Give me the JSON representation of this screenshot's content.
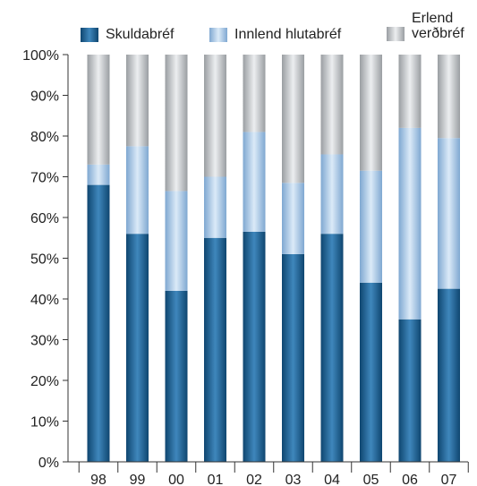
{
  "chart_data": {
    "type": "bar",
    "stacked": true,
    "categories": [
      "98",
      "99",
      "00",
      "01",
      "02",
      "03",
      "04",
      "05",
      "06",
      "07"
    ],
    "series": [
      {
        "name": "Skuldabréf",
        "color": "#1a5a8a",
        "values": [
          68,
          56,
          42,
          55,
          56.5,
          51,
          56,
          44,
          35,
          42.5
        ]
      },
      {
        "name": "Innlend hlutabréf",
        "color": "#9dc2e6",
        "values": [
          5,
          21.5,
          24.5,
          15,
          24.5,
          17.5,
          19.5,
          27.5,
          47,
          37
        ]
      },
      {
        "name": "Erlend\nverðbréf",
        "color": "#aeb2b5",
        "values": [
          27,
          22.5,
          33.5,
          30,
          19,
          31.5,
          24.5,
          28.5,
          18,
          20.5
        ]
      }
    ],
    "yticks": [
      "0%",
      "10%",
      "20%",
      "30%",
      "40%",
      "50%",
      "60%",
      "70%",
      "80%",
      "90%",
      "100%"
    ],
    "ylim": [
      0,
      100
    ],
    "grid": false,
    "legend": "top"
  }
}
